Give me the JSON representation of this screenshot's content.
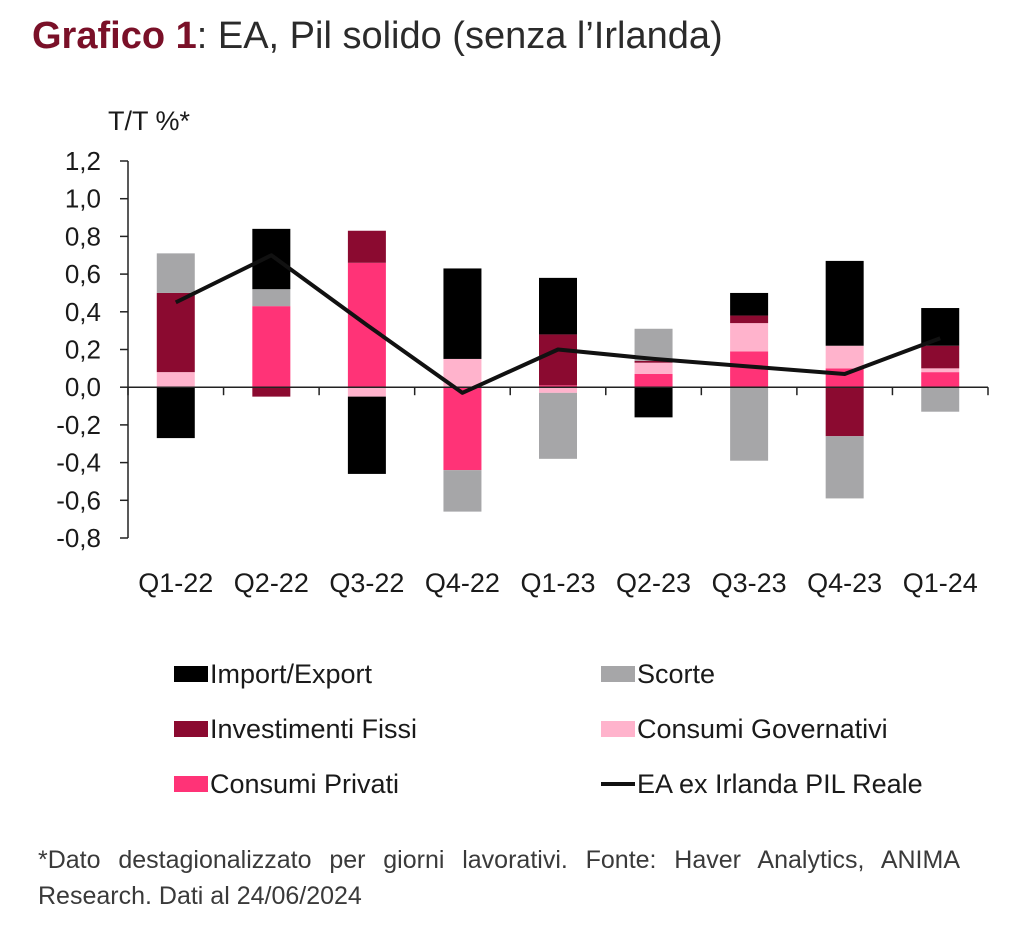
{
  "title": {
    "bold": "Grafico 1",
    "rest": ": EA, Pil solido (senza l’Irlanda)"
  },
  "note": "*Dato destagionalizzato per giorni lavorativi. Fonte: Haver Analytics, ANIMA Research. Dati al 24/06/2024",
  "chart_data": {
    "type": "bar",
    "stacked": true,
    "ylabel": "T/T %*",
    "ylim": [
      -0.8,
      1.2
    ],
    "yticks": [
      1.2,
      1.0,
      0.8,
      0.6,
      0.4,
      0.2,
      0.0,
      -0.2,
      -0.4,
      -0.6,
      -0.8
    ],
    "ytick_labels": [
      "1,2",
      "1,0",
      "0,8",
      "0,6",
      "0,4",
      "0,2",
      "0,0",
      "-0,2",
      "-0,4",
      "-0,6",
      "-0,8"
    ],
    "categories": [
      "Q1-22",
      "Q2-22",
      "Q3-22",
      "Q4-22",
      "Q1-23",
      "Q2-23",
      "Q3-23",
      "Q4-23",
      "Q1-24"
    ],
    "series": [
      {
        "name": "Consumi Privati",
        "color": "#ff3377",
        "values": [
          0.0,
          0.43,
          0.66,
          -0.44,
          0.01,
          0.07,
          0.19,
          0.1,
          0.08
        ]
      },
      {
        "name": "Consumi Governativi",
        "color": "#ffb3cc",
        "values": [
          0.08,
          0.0,
          -0.05,
          0.15,
          -0.03,
          0.06,
          0.15,
          0.12,
          0.02
        ]
      },
      {
        "name": "Investimenti Fissi",
        "color": "#8b0a30",
        "values": [
          0.42,
          -0.05,
          0.17,
          0.0,
          0.27,
          0.01,
          0.04,
          -0.26,
          0.12
        ]
      },
      {
        "name": "Scorte",
        "color": "#a6a6a8",
        "values": [
          0.21,
          0.09,
          0.0,
          -0.22,
          -0.35,
          0.17,
          -0.39,
          -0.33,
          -0.13
        ]
      },
      {
        "name": "Import/Export",
        "color": "#000000",
        "values": [
          -0.27,
          0.32,
          -0.41,
          0.48,
          0.3,
          -0.16,
          0.12,
          0.45,
          0.2
        ]
      }
    ],
    "line": {
      "name": "EA ex Irlanda PIL Reale",
      "color": "#111111",
      "values": [
        0.45,
        0.7,
        0.33,
        -0.03,
        0.2,
        0.15,
        0.11,
        0.07,
        0.26
      ]
    },
    "legend": [
      {
        "name": "Import/Export",
        "color": "#000000",
        "kind": "box"
      },
      {
        "name": "Scorte",
        "color": "#a6a6a8",
        "kind": "box"
      },
      {
        "name": "Investimenti Fissi",
        "color": "#8b0a30",
        "kind": "box"
      },
      {
        "name": "Consumi Governativi",
        "color": "#ffb3cc",
        "kind": "box"
      },
      {
        "name": "Consumi Privati",
        "color": "#ff3377",
        "kind": "box"
      },
      {
        "name": "EA ex Irlanda PIL Reale",
        "color": "#111111",
        "kind": "line"
      }
    ],
    "legend_position": "bottom"
  }
}
